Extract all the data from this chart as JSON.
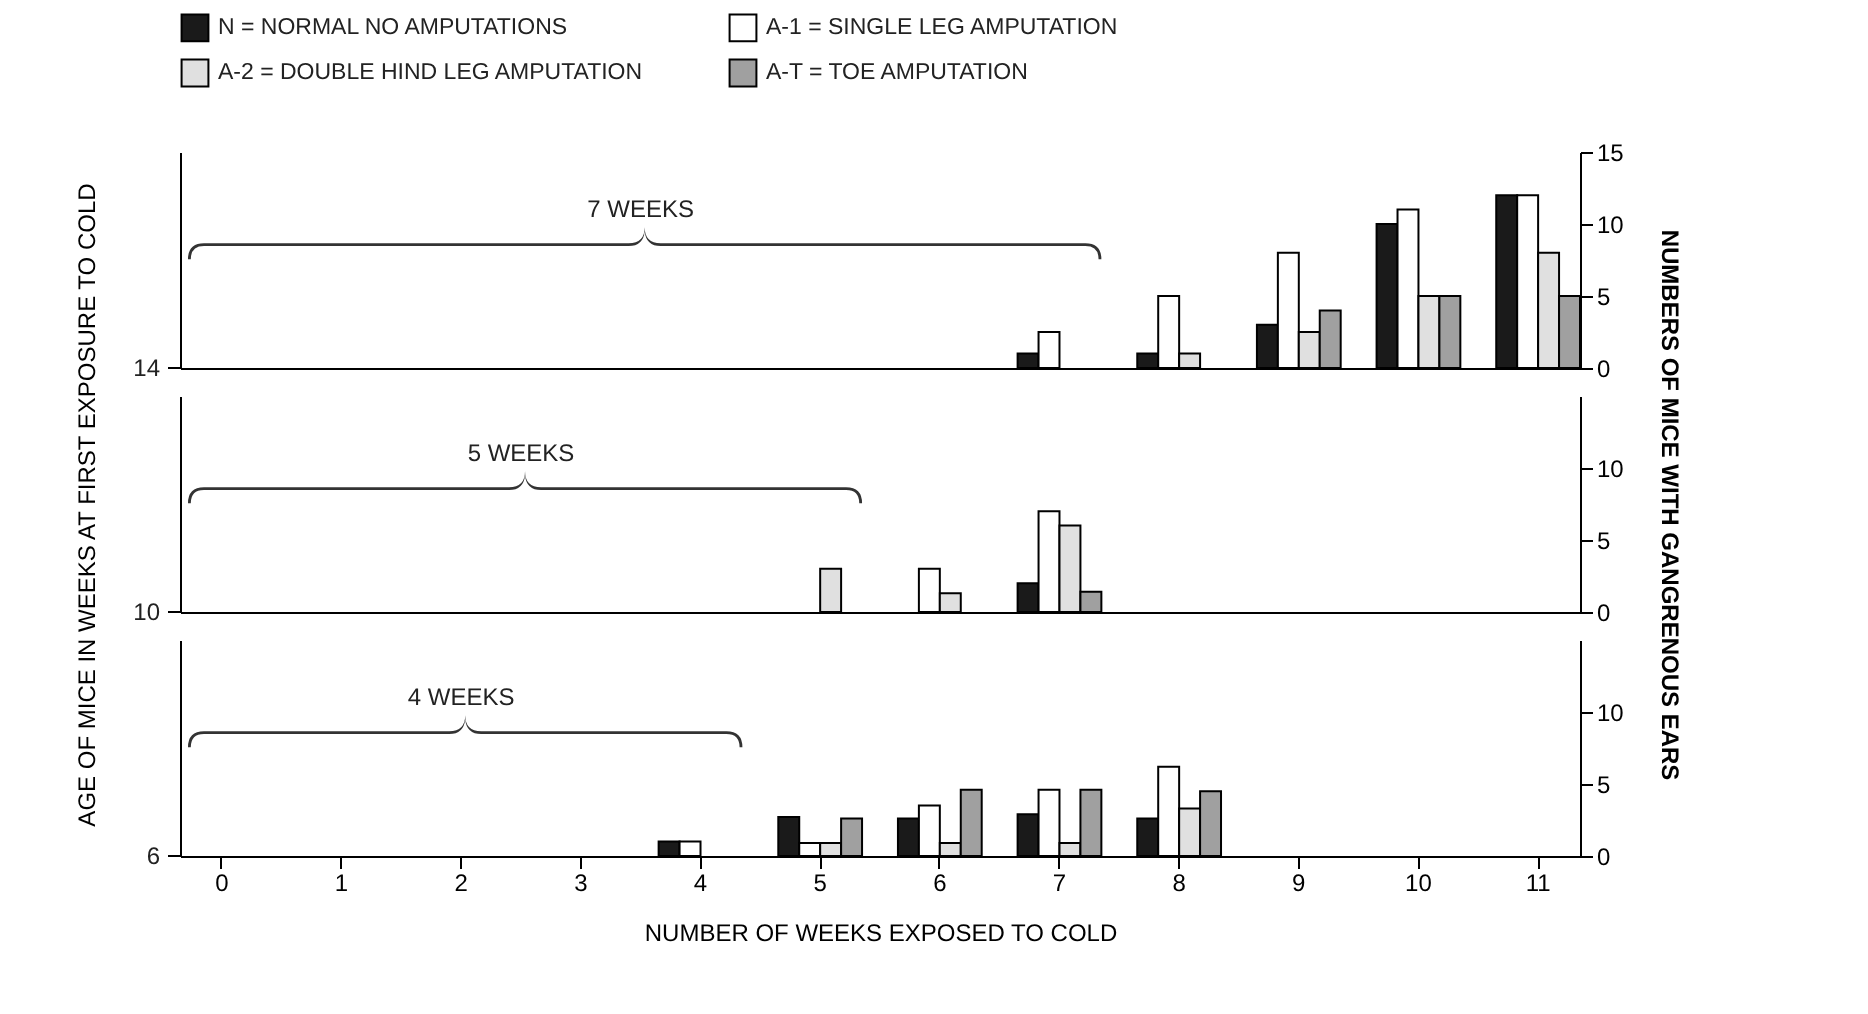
{
  "chart_data": [
    {
      "type": "bar",
      "categories": [
        null,
        null,
        null,
        null,
        null,
        null,
        null,
        null,
        null,
        null,
        null,
        null
      ],
      "y2lim": [
        0,
        15
      ],
      "y2ticks": [
        0,
        5,
        10,
        15
      ],
      "legend": "top",
      "annotations": [
        "7 WEEKS",
        "14"
      ],
      "series": [
        {
          "name": "N = NORMAL NO AMPUTATIONS",
          "color": "#1a1a1a",
          "axis": "y2",
          "values": [
            null,
            null,
            null,
            null,
            null,
            null,
            null,
            1,
            1,
            3,
            10,
            12
          ]
        },
        {
          "name": "A-1 = SINGLE LEG AMPUTATION",
          "color": "#ffffff",
          "axis": "y2",
          "values": [
            null,
            null,
            null,
            null,
            null,
            null,
            null,
            2.5,
            5,
            8,
            11,
            12
          ]
        },
        {
          "name": "A-2 = DOUBLE HIND LEG AMPUTATION",
          "color": "#e0e0e0",
          "axis": "y2",
          "values": [
            null,
            null,
            null,
            null,
            null,
            null,
            null,
            null,
            1,
            2.5,
            5,
            8
          ]
        },
        {
          "name": "A-T = TOE AMPUTATION",
          "color": "#a0a0a0",
          "axis": "y2",
          "values": [
            null,
            null,
            null,
            null,
            null,
            null,
            null,
            null,
            null,
            4,
            5,
            5
          ]
        }
      ]
    },
    {
      "type": "bar",
      "categories": [
        null,
        null,
        null,
        null,
        null,
        null,
        null,
        null,
        null,
        null,
        null,
        null
      ],
      "ylabel": "AGE OF MICE IN WEEKS AT FIRST EXPOSURE TO COLD",
      "y2label": "NUMBERS OF MICE WITH GANGRENOUS EARS",
      "y2lim": [
        0,
        15
      ],
      "y2ticks": [
        0,
        5,
        10
      ],
      "annotations": [
        "5 WEEKS",
        "10"
      ],
      "series": [
        {
          "color": "#1a1a1a",
          "axis": "y2",
          "values": [
            null,
            null,
            null,
            null,
            null,
            null,
            null,
            2,
            null,
            null,
            null,
            null
          ]
        },
        {
          "color": "#ffffff",
          "axis": "y2",
          "values": [
            null,
            null,
            null,
            null,
            null,
            null,
            3,
            7,
            null,
            null,
            null,
            null
          ]
        },
        {
          "color": "#e0e0e0",
          "axis": "y2",
          "values": [
            null,
            null,
            null,
            null,
            null,
            3,
            1.3,
            6,
            null,
            null,
            null,
            null
          ]
        },
        {
          "color": "#a0a0a0",
          "axis": "y2",
          "values": [
            null,
            null,
            null,
            null,
            null,
            null,
            null,
            1.4,
            null,
            null,
            null,
            null
          ]
        }
      ]
    },
    {
      "type": "bar",
      "categories": [
        "0",
        "1",
        "2",
        "3",
        "4",
        "5",
        "6",
        "7",
        "8",
        "9",
        "10",
        "11"
      ],
      "xlabel": "NUMBER OF WEEKS EXPOSED TO COLD",
      "y2lim": [
        0,
        15
      ],
      "y2ticks": [
        0,
        5,
        10
      ],
      "annotations": [
        "4 WEEKS",
        "6"
      ],
      "series": [
        {
          "color": "#1a1a1a",
          "axis": "y2",
          "values": [
            null,
            null,
            null,
            null,
            1,
            2.7,
            2.6,
            2.9,
            2.6,
            null,
            null,
            null
          ]
        },
        {
          "color": "#ffffff",
          "axis": "y2",
          "values": [
            null,
            null,
            null,
            null,
            1,
            0.9,
            3.5,
            4.6,
            6.2,
            null,
            null,
            null
          ]
        },
        {
          "color": "#e0e0e0",
          "axis": "y2",
          "values": [
            null,
            null,
            null,
            null,
            null,
            0.9,
            0.9,
            0.9,
            3.3,
            null,
            null,
            null
          ]
        },
        {
          "color": "#a0a0a0",
          "axis": "y2",
          "values": [
            null,
            null,
            null,
            null,
            null,
            2.6,
            4.6,
            4.6,
            4.5,
            null,
            null,
            null
          ]
        }
      ]
    }
  ]
}
